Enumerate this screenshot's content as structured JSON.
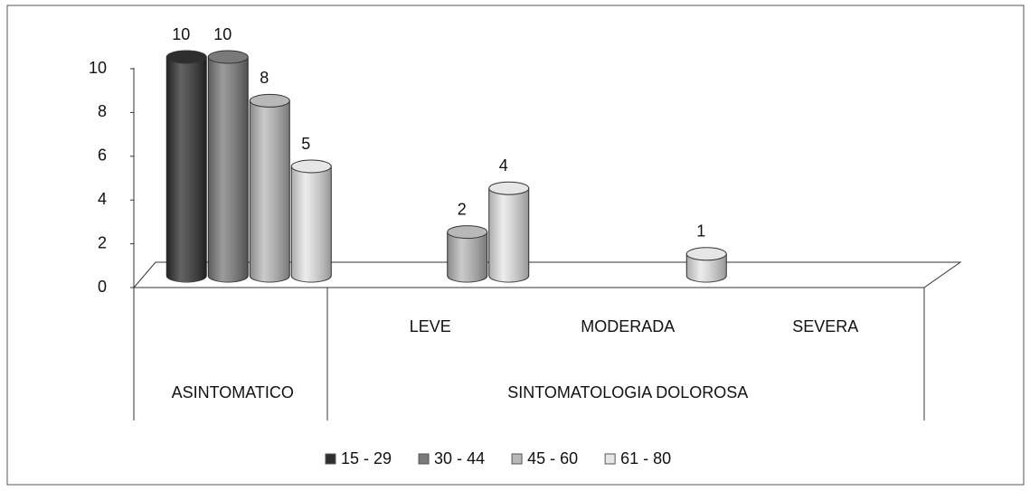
{
  "chart_data": {
    "type": "bar",
    "categories": [
      null,
      "LEVE",
      "MODERADA",
      "SEVERA"
    ],
    "groups": [
      {
        "label": "ASINTOMATICO",
        "span": [
          0,
          0
        ]
      },
      {
        "label": "SINTOMATOLOGIA DOLOROSA",
        "span": [
          1,
          3
        ]
      }
    ],
    "series": [
      {
        "name": "15 - 29",
        "color": "#2e2e2e",
        "values": [
          10,
          null,
          null,
          null
        ]
      },
      {
        "name": "30 - 44",
        "color": "#7a7a7a",
        "values": [
          10,
          null,
          null,
          null
        ]
      },
      {
        "name": "45 - 60",
        "color": "#b8b8b8",
        "values": [
          8,
          2,
          null,
          null
        ]
      },
      {
        "name": "61 - 80",
        "color": "#e6e6e6",
        "values": [
          5,
          4,
          1,
          null
        ]
      }
    ],
    "ylim": [
      0,
      10
    ],
    "yticks": [
      0,
      2,
      4,
      6,
      8,
      10
    ],
    "legend": "bottom"
  }
}
